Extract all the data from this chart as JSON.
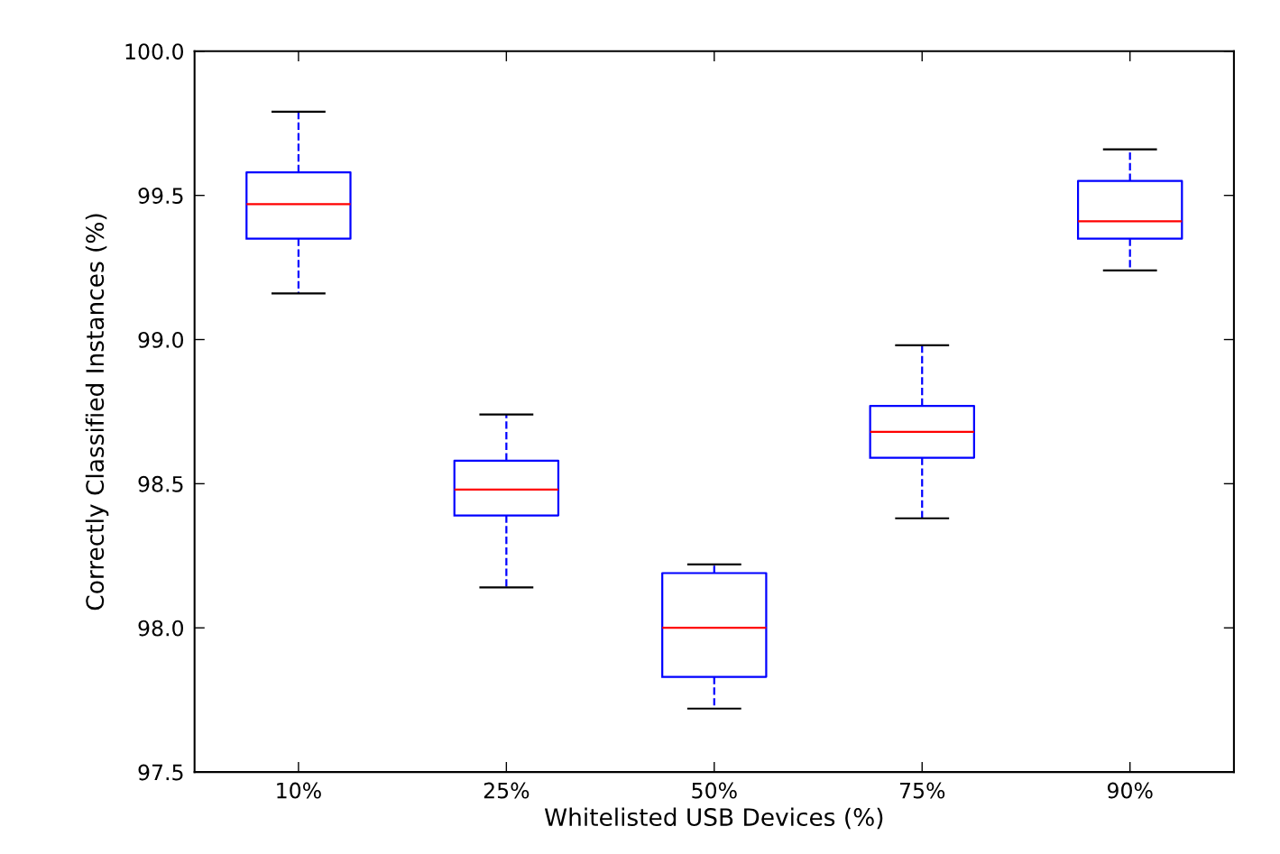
{
  "chart_data": {
    "type": "box",
    "xlabel": "Whitelisted USB Devices (%)",
    "ylabel": "Correctly Classified Instances (%)",
    "categories": [
      "10%",
      "25%",
      "50%",
      "75%",
      "90%"
    ],
    "boxes": [
      {
        "low": 99.16,
        "q1": 99.35,
        "median": 99.47,
        "q3": 99.58,
        "high": 99.79
      },
      {
        "low": 98.14,
        "q1": 98.39,
        "median": 98.48,
        "q3": 98.58,
        "high": 98.74
      },
      {
        "low": 97.72,
        "q1": 97.83,
        "median": 98.0,
        "q3": 98.19,
        "high": 98.22
      },
      {
        "low": 98.38,
        "q1": 98.59,
        "median": 98.68,
        "q3": 98.77,
        "high": 98.98
      },
      {
        "low": 99.24,
        "q1": 99.35,
        "median": 99.41,
        "q3": 99.55,
        "high": 99.66
      }
    ],
    "color": "#0000ff",
    "ylim": [
      97.5,
      100.0
    ],
    "yticks": [
      {
        "value": 97.5,
        "label": "97.5"
      },
      {
        "value": 98.0,
        "label": "98.0"
      },
      {
        "value": 98.5,
        "label": "98.5"
      },
      {
        "value": 99.0,
        "label": "99.0"
      },
      {
        "value": 99.5,
        "label": "99.5"
      },
      {
        "value": 100.0,
        "label": "100.0"
      }
    ],
    "grid": false,
    "line_style": "dashed"
  }
}
